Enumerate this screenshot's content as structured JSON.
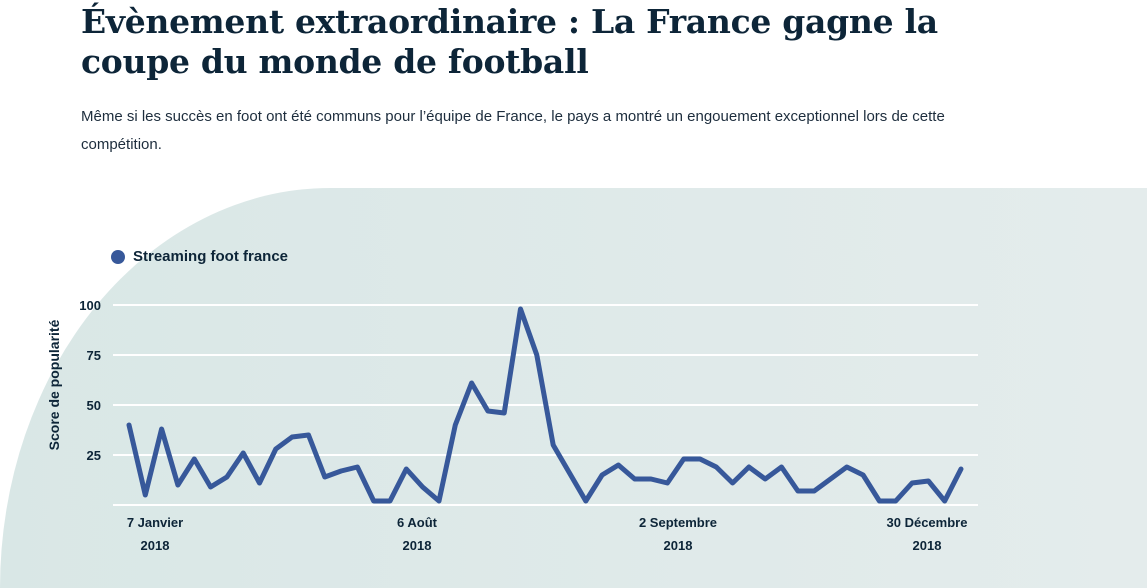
{
  "header": {
    "title": "Évènement extraordinaire : La France gagne la coupe du monde de football",
    "description": "Même si les succès en foot ont été communs pour l’équipe de France, le pays a montré un engouement exceptionnel lors de cette compétition."
  },
  "chart_data": {
    "type": "line",
    "title": "",
    "xlabel": "",
    "ylabel": "Score de popularité",
    "ylim": [
      0,
      100
    ],
    "y_ticks": [
      25,
      50,
      75,
      100
    ],
    "grid": true,
    "legend_position": "top-left",
    "x_tick_labels": [
      {
        "line1": "7 Janvier",
        "line2": "2018"
      },
      {
        "line1": "6 Août",
        "line2": "2018"
      },
      {
        "line1": "2 Septembre",
        "line2": "2018"
      },
      {
        "line1": "30 Décembre",
        "line2": "2018"
      }
    ],
    "series": [
      {
        "name": "Streaming foot france",
        "color": "#37589a",
        "values": [
          40,
          5,
          38,
          10,
          23,
          9,
          14,
          26,
          11,
          28,
          34,
          35,
          14,
          17,
          19,
          2,
          2,
          18,
          9,
          2,
          40,
          61,
          47,
          46,
          98,
          75,
          30,
          16,
          2,
          15,
          20,
          13,
          13,
          11,
          23,
          23,
          19,
          11,
          19,
          13,
          19,
          7,
          7,
          13,
          19,
          15,
          2,
          2,
          11,
          12,
          2,
          18
        ]
      }
    ]
  }
}
